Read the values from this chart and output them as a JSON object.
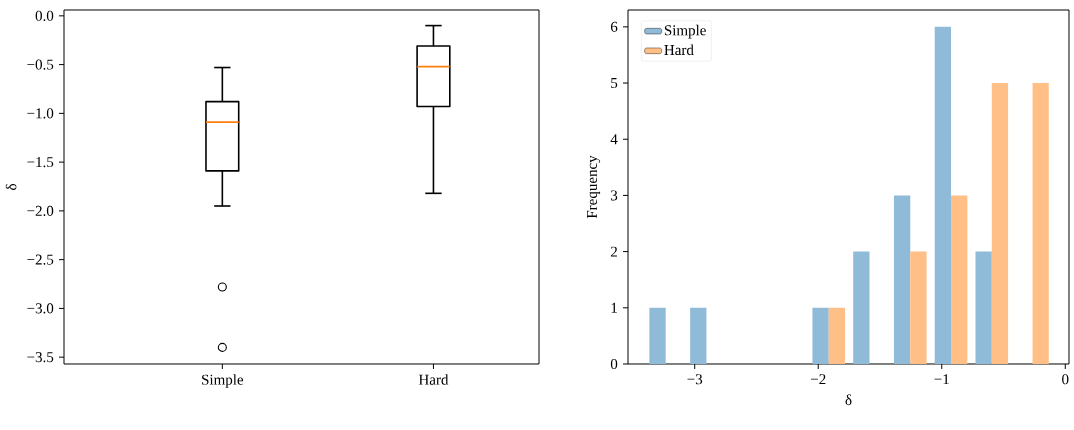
{
  "chart_data": [
    {
      "type": "box",
      "ylabel": "δ",
      "categories": [
        "Simple",
        "Hard"
      ],
      "boxes": [
        {
          "low": -1.95,
          "q1": -1.59,
          "median": -1.09,
          "q3": -0.88,
          "high": -0.53,
          "outliers": [
            -2.78,
            -3.4
          ]
        },
        {
          "low": -1.82,
          "q1": -0.93,
          "median": -0.52,
          "q3": -0.31,
          "high": -0.1
        }
      ],
      "ylim": [
        -3.57,
        0.06
      ],
      "yticks": [
        {
          "value": 0.0,
          "label": "0.0"
        },
        {
          "value": -0.5,
          "label": "−0.5"
        },
        {
          "value": -1.0,
          "label": "−1.0"
        },
        {
          "value": -1.5,
          "label": "−1.5"
        },
        {
          "value": -2.0,
          "label": "−2.0"
        },
        {
          "value": -2.5,
          "label": "−2.5"
        },
        {
          "value": -3.0,
          "label": "−3.0"
        },
        {
          "value": -3.5,
          "label": "−3.5"
        }
      ],
      "marker": "circle",
      "legend": false
    },
    {
      "type": "histogram",
      "xlabel": "δ",
      "ylabel": "Frequency",
      "bins": [
        -3.4,
        -3.07,
        -2.74,
        -2.41,
        -2.08,
        -1.75,
        -1.42,
        -1.09,
        -0.76,
        -0.43,
        -0.1
      ],
      "series": [
        {
          "name": "Simple",
          "color": "#8fbbd9",
          "values": [
            1,
            1,
            0,
            0,
            1,
            2,
            3,
            6,
            2,
            0
          ]
        },
        {
          "name": "Hard",
          "color": "#ffbf86",
          "values": [
            0,
            0,
            0,
            0,
            1,
            0,
            2,
            3,
            5,
            5
          ]
        }
      ],
      "xlim": [
        -3.54,
        0.03
      ],
      "ylim": [
        0,
        6.3
      ],
      "xticks": [
        {
          "value": -3,
          "label": "−3"
        },
        {
          "value": -2,
          "label": "−2"
        },
        {
          "value": -1,
          "label": "−1"
        },
        0
      ],
      "yticks": [
        0,
        1,
        2,
        3,
        4,
        5,
        6
      ],
      "legend": "top left"
    }
  ]
}
